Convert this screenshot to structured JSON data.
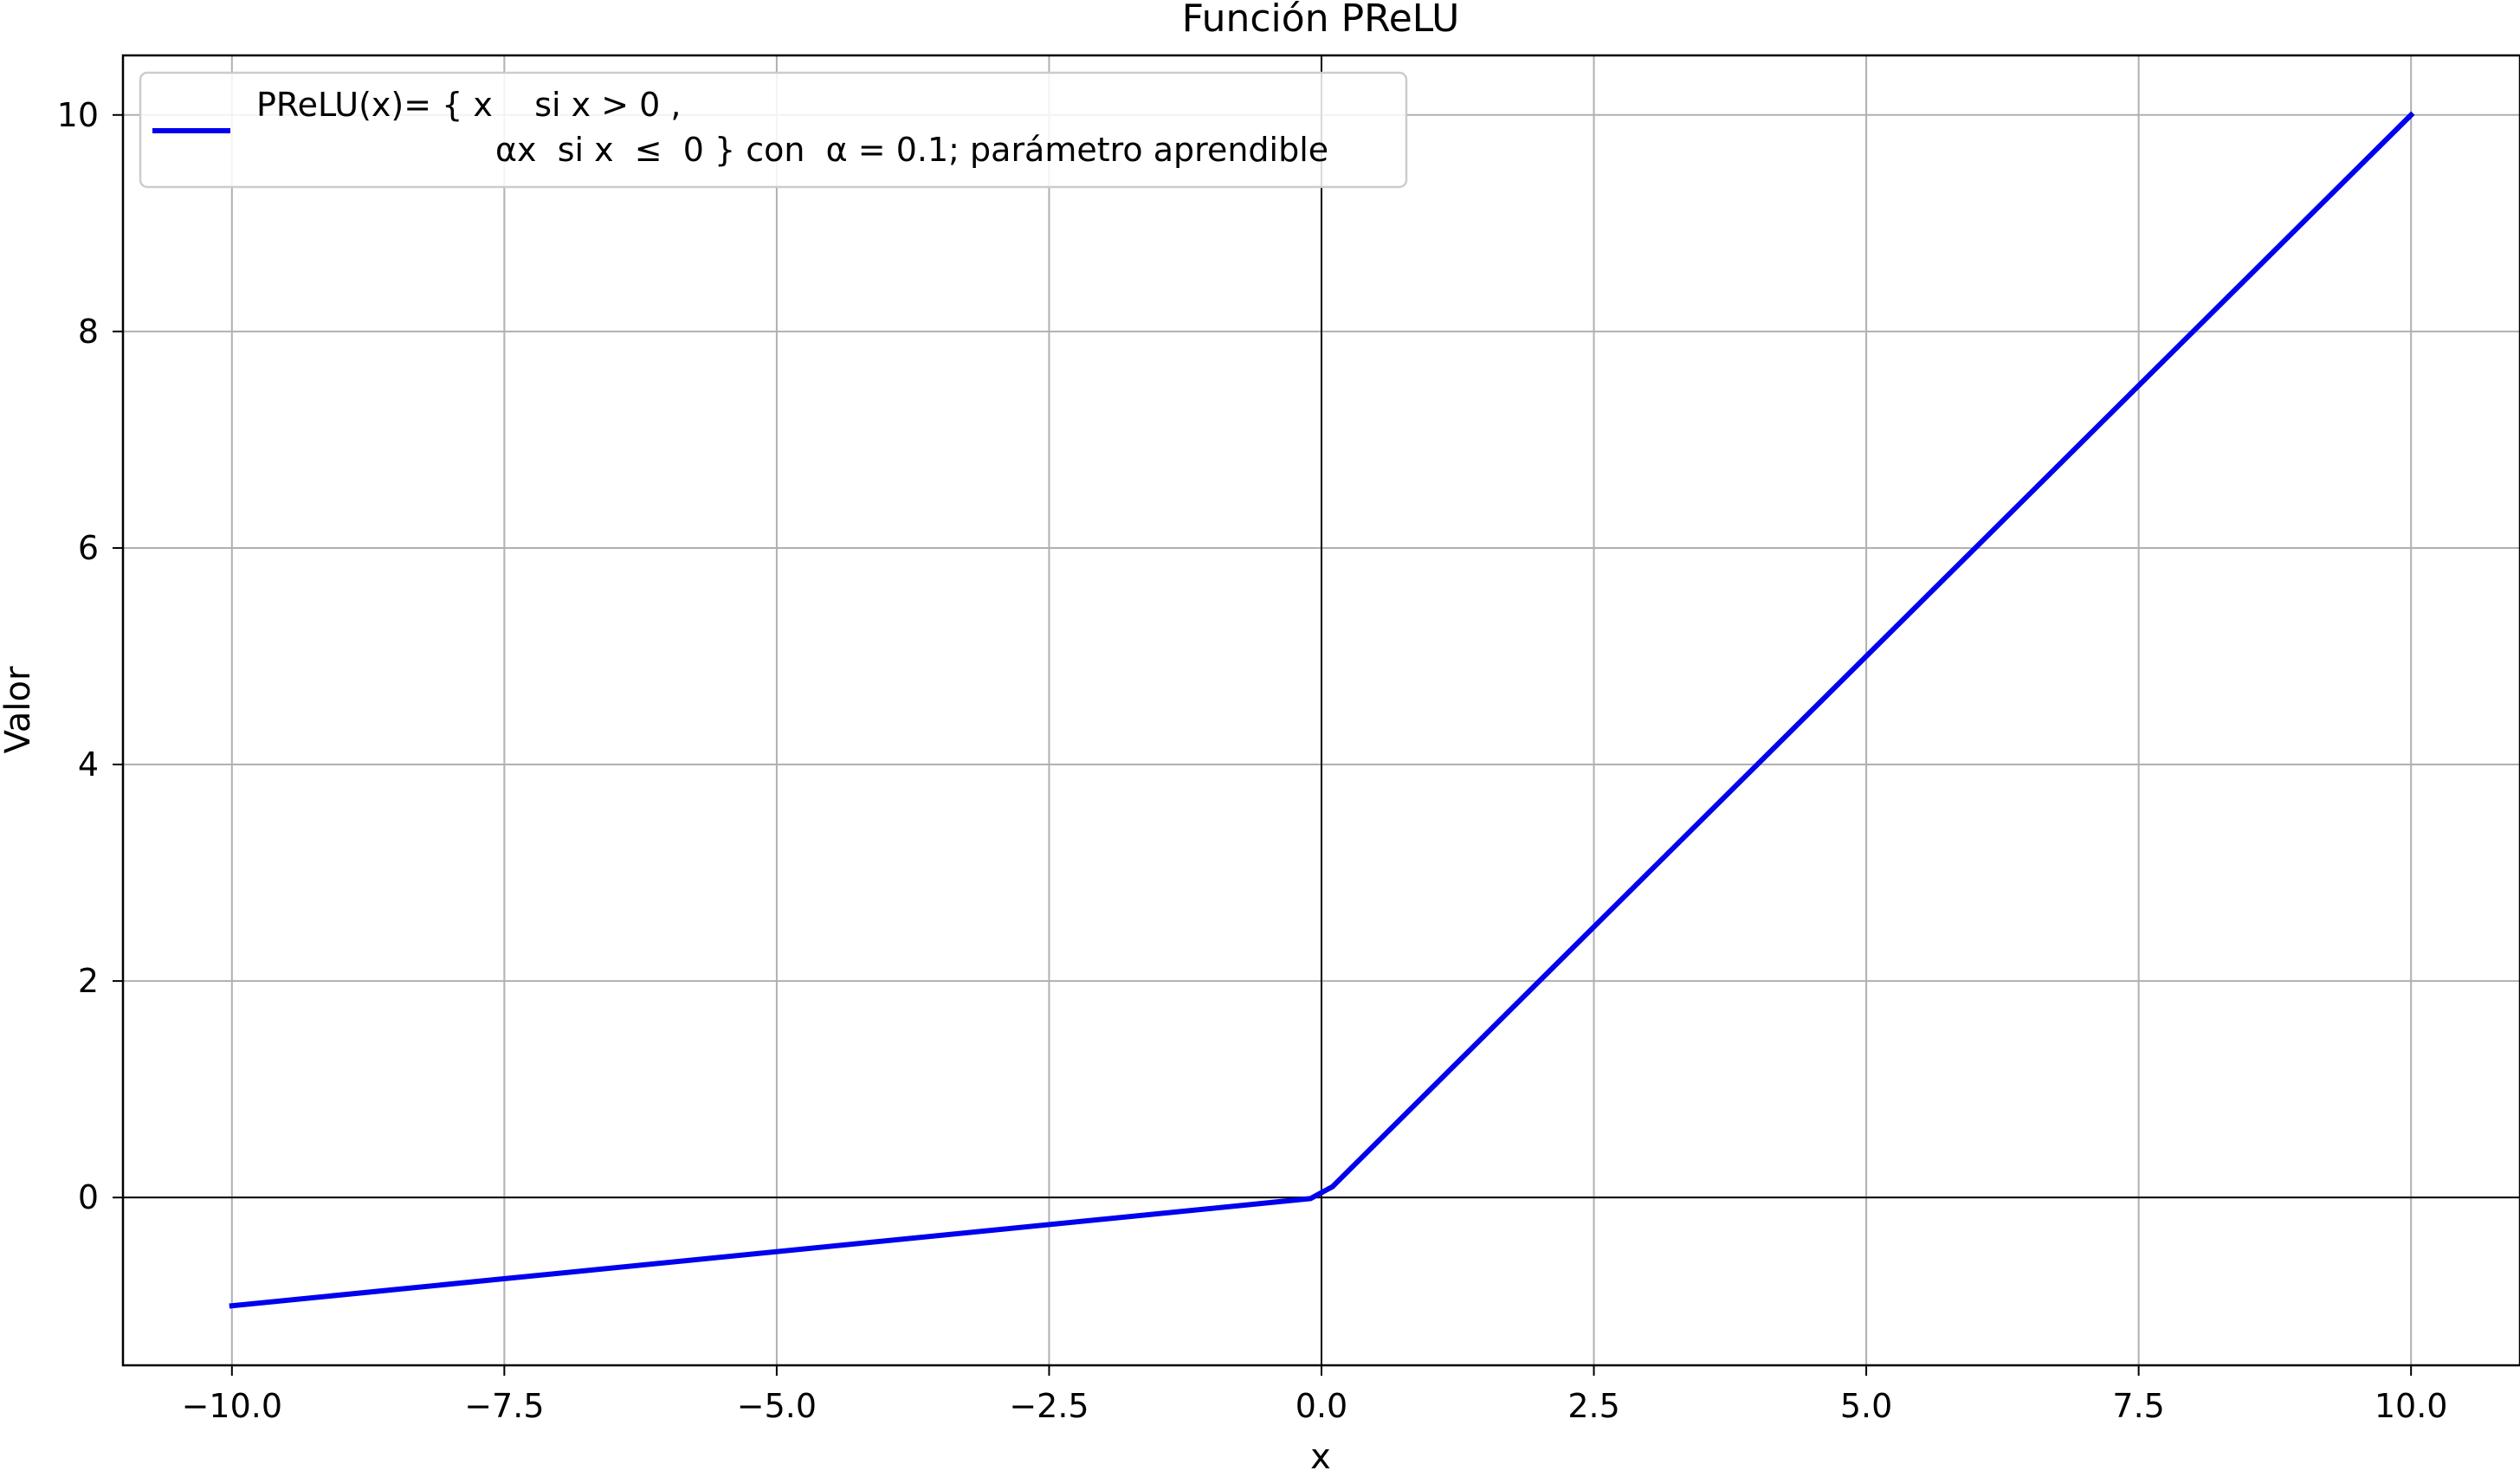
{
  "chart_data": {
    "type": "line",
    "title": "Función PReLU",
    "xlabel": "x",
    "ylabel": "Valor",
    "xlim": [
      -11,
      11
    ],
    "ylim": [
      -1.55,
      10.55
    ],
    "xticks": [
      -10.0,
      -7.5,
      -5.0,
      -2.5,
      0.0,
      2.5,
      5.0,
      7.5,
      10.0
    ],
    "xtick_labels": [
      "−10.0",
      "−7.5",
      "−5.0",
      "−2.5",
      "0.0",
      "2.5",
      "5.0",
      "7.5",
      "10.0"
    ],
    "yticks": [
      0,
      2,
      4,
      6,
      8,
      10
    ],
    "ytick_labels": [
      "0",
      "2",
      "4",
      "6",
      "8",
      "10"
    ],
    "grid": true,
    "legend_position": "top-left",
    "reference_lines": {
      "x": 0,
      "y": 0
    },
    "series": [
      {
        "name_line1": "PReLU(x)= { x    si x > 0 ,",
        "name_line2": "αx  si x  ≤  0 } con  α = 0.1; parámetro aprendible",
        "color": "#0000ee",
        "x": [
          -10,
          -0.1,
          0.1,
          10
        ],
        "y": [
          -1.0,
          -0.01,
          0.1,
          10
        ]
      }
    ]
  }
}
